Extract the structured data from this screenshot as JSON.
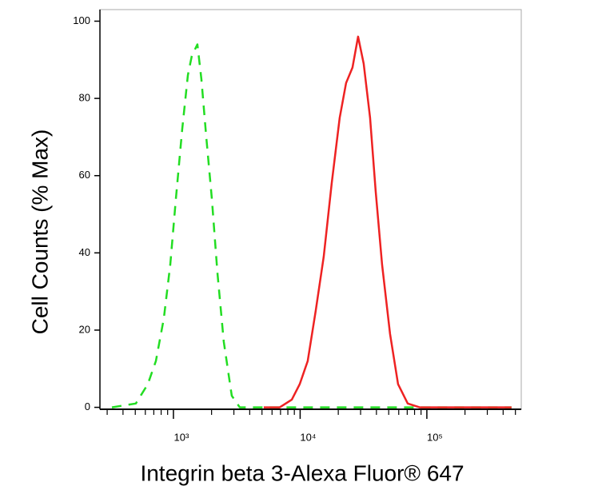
{
  "chart_data": {
    "type": "line",
    "x_label": "Integrin beta 3-Alexa Fluor® 647",
    "y_label": "Cell Counts (% Max)",
    "xscale": "log",
    "xlim": [
      263,
      556000
    ],
    "ylim": [
      -0.5,
      103
    ],
    "xticks": [
      {
        "value": 1000,
        "label": "10³"
      },
      {
        "value": 10000,
        "label": "10⁴"
      },
      {
        "value": 100000,
        "label": "10⁵"
      }
    ],
    "xminorticks": [
      300,
      400,
      500,
      600,
      700,
      800,
      900,
      2000,
      3000,
      4000,
      5000,
      6000,
      7000,
      8000,
      9000,
      20000,
      30000,
      40000,
      50000,
      60000,
      70000,
      80000,
      90000,
      200000,
      300000,
      400000,
      500000
    ],
    "yticks": [
      0,
      20,
      40,
      60,
      80,
      100
    ],
    "series": [
      {
        "color": "#22dd22",
        "dash": true,
        "x": [
          327,
          505,
          628,
          727,
          840,
          944,
          1045,
          1173,
          1300,
          1397,
          1546,
          1663,
          1815,
          2009,
          2223,
          2496,
          2888,
          3340,
          466000
        ],
        "values": [
          0,
          1,
          6,
          12,
          23,
          37,
          54,
          72,
          86,
          91,
          94,
          85,
          70,
          54,
          35,
          17,
          3,
          0,
          0
        ]
      },
      {
        "color": "#ee2222",
        "dash": false,
        "x": [
          5164,
          6904,
          8590,
          9930,
          11480,
          13280,
          15350,
          17750,
          20520,
          23060,
          25880,
          28650,
          31750,
          35650,
          39460,
          44340,
          51270,
          59290,
          70630,
          87700,
          466000
        ],
        "values": [
          0,
          0,
          2,
          6,
          12,
          25,
          39,
          58,
          75,
          84,
          88,
          96,
          89,
          75,
          56,
          37,
          19,
          6,
          1,
          0,
          0
        ]
      }
    ]
  }
}
